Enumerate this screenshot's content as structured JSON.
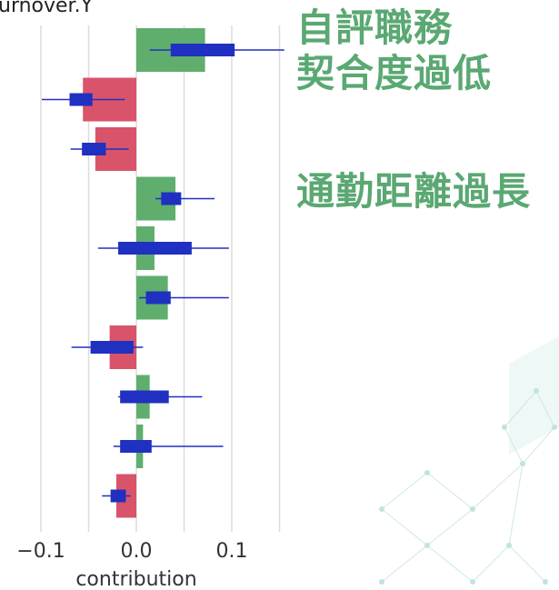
{
  "chart_data": {
    "type": "bar",
    "title": "urnover.Y",
    "xlabel": "contribution",
    "xlim": [
      -0.1,
      0.1
    ],
    "xticks": [
      -0.1,
      0.0,
      0.1
    ],
    "xtick_labels": [
      "−0.1",
      "0.0",
      "0.1"
    ],
    "grid": true,
    "orientation": "horizontal",
    "series": [
      {
        "values": [
          0.072,
          -0.056,
          -0.043,
          0.041,
          0.019,
          0.033,
          -0.028,
          0.014,
          0.007,
          -0.021
        ]
      }
    ],
    "intervals": [
      {
        "point": 0.052,
        "inner": [
          0.036,
          0.103
        ],
        "outer": [
          0.014,
          0.155
        ]
      },
      {
        "point": -0.058,
        "inner": [
          -0.07,
          -0.046
        ],
        "outer": [
          -0.099,
          -0.012
        ]
      },
      {
        "point": -0.044,
        "inner": [
          -0.057,
          -0.032
        ],
        "outer": [
          -0.069,
          -0.008
        ]
      },
      {
        "point": 0.036,
        "inner": [
          0.026,
          0.047
        ],
        "outer": [
          0.02,
          0.082
        ]
      },
      {
        "point": 0.019,
        "inner": [
          -0.019,
          0.058
        ],
        "outer": [
          -0.04,
          0.097
        ]
      },
      {
        "point": 0.023,
        "inner": [
          0.01,
          0.036
        ],
        "outer": [
          0.003,
          0.097
        ]
      },
      {
        "point": -0.036,
        "inner": [
          -0.048,
          -0.003
        ],
        "outer": [
          -0.068,
          0.007
        ]
      },
      {
        "point": 0.009,
        "inner": [
          -0.017,
          0.034
        ],
        "outer": [
          -0.019,
          0.069
        ]
      },
      {
        "point": 0.002,
        "inner": [
          -0.017,
          0.016
        ],
        "outer": [
          -0.024,
          0.091
        ]
      },
      {
        "point": -0.019,
        "inner": [
          -0.027,
          -0.011
        ],
        "outer": [
          -0.036,
          -0.006
        ]
      }
    ],
    "colors": {
      "positive": "#5fae6e",
      "negative": "#d9546a",
      "interval": "#2030c0",
      "grid": "#dcdcdc"
    }
  },
  "annotations": {
    "group1": [
      "自評職務",
      "契合度過低"
    ],
    "group2": [
      "通勤距離過長"
    ]
  }
}
